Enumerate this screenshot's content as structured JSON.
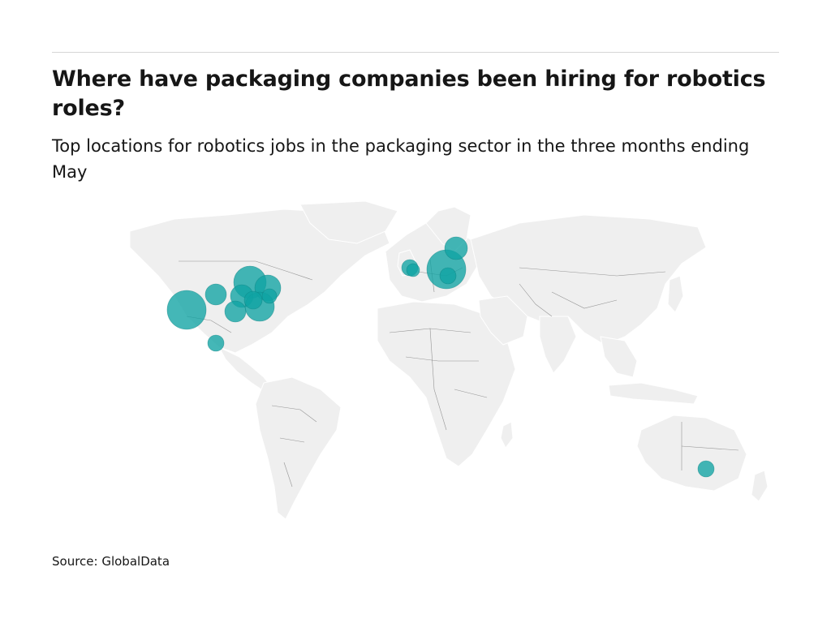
{
  "header": {
    "title": "Where have packaging companies been hiring for robotics roles?",
    "subtitle": "Top locations for robotics jobs in the packaging sector in the three months ending May"
  },
  "footer": {
    "source": "Source: GlobalData"
  },
  "colors": {
    "bubble": "#0fa3a3",
    "land": "#efefef",
    "border": "#4a4a4a"
  }
}
